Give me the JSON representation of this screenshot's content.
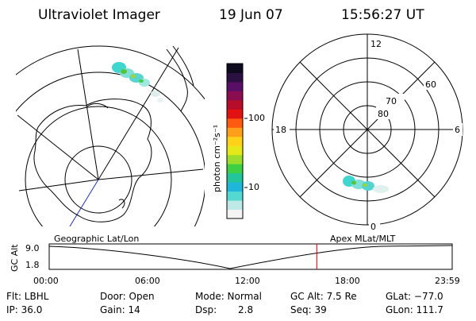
{
  "header": {
    "instrument": "Ultraviolet Imager",
    "date": "19 Jun 07",
    "time": "15:56:27 UT"
  },
  "colorbar": {
    "label": "photon cm⁻²s⁻¹",
    "ticks": [
      "100",
      "10"
    ],
    "colors": [
      "#f4f4f4",
      "#bfe9e6",
      "#55d7d2",
      "#1fb7d9",
      "#23c59a",
      "#3fcf45",
      "#9bdc2c",
      "#e6e81a",
      "#ffd21a",
      "#ff9f1a",
      "#ff5a12",
      "#e31212",
      "#b80d2a",
      "#8a0d52",
      "#5a0f66",
      "#2a1040",
      "#0d0a1e"
    ]
  },
  "polar_plot": {
    "lat_labels": [
      "80",
      "70",
      "60"
    ],
    "mlt_labels": [
      "12",
      "18",
      "6",
      "0"
    ]
  },
  "timeline": {
    "left_title": "Geographic Lat/Lon",
    "right_title": "Apex MLat/MLT",
    "axis_label": "GC Alt",
    "y_ticks": [
      "9.0",
      "1.8"
    ],
    "x_ticks": [
      "00:00",
      "06:00",
      "12:00",
      "18:00",
      "23:59"
    ],
    "current_time_hours": 15.94,
    "marker_color": "#e00000"
  },
  "info": {
    "filter": "Flt: LBHL",
    "ip": "IP: 36.0",
    "door": "Door: Open",
    "gain": "Gain: 14",
    "mode": "Mode: Normal",
    "dsp_label": "Dsp:",
    "dsp_value": "2.8",
    "gc_alt": "GC Alt: 7.5 Re",
    "seq": "Seq: 39",
    "glat": "GLat: −77.0",
    "glon": "GLon: 111.7"
  }
}
